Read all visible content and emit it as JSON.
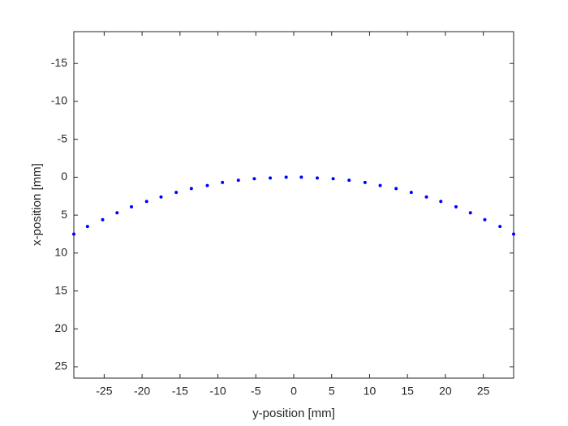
{
  "chart_data": {
    "type": "scatter",
    "x_label": "y-position [mm]",
    "y_label": "x-position [mm]",
    "x": [
      -29,
      -27.2,
      -25.2,
      -23.3,
      -21.4,
      -19.4,
      -17.5,
      -15.5,
      -13.5,
      -11.4,
      -9.4,
      -7.3,
      -5.2,
      -3.1,
      -1.0,
      1.0,
      3.1,
      5.2,
      7.3,
      9.4,
      11.4,
      13.5,
      15.5,
      17.5,
      19.4,
      21.4,
      23.3,
      25.2,
      27.2,
      29
    ],
    "values": [
      7.5,
      6.5,
      5.6,
      4.7,
      3.9,
      3.2,
      2.6,
      2.0,
      1.5,
      1.1,
      0.7,
      0.4,
      0.2,
      0.1,
      0.0,
      0.0,
      0.1,
      0.2,
      0.4,
      0.7,
      1.1,
      1.5,
      2.0,
      2.6,
      3.2,
      3.9,
      4.7,
      5.6,
      6.5,
      7.5
    ],
    "color": "#0000ff",
    "xlim": [
      -29,
      29
    ],
    "ylim": [
      -19.2,
      26.5
    ],
    "y_reversed": true,
    "xticks": [
      -25,
      -20,
      -15,
      -10,
      -5,
      0,
      5,
      10,
      15,
      20,
      25
    ],
    "yticks": [
      -15,
      -10,
      -5,
      0,
      5,
      10,
      15,
      20,
      25
    ],
    "grid": false
  }
}
